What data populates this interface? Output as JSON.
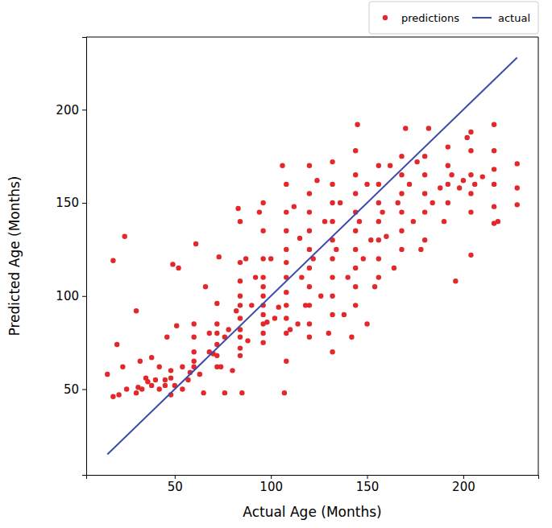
{
  "chart_data": {
    "type": "scatter",
    "x_label": "Actual Age (Months)",
    "y_label": "Predicted Age (Months)",
    "xlim": [
      4,
      239
    ],
    "ylim": [
      4,
      239
    ],
    "xticks": [
      50,
      100,
      150,
      200
    ],
    "yticks": [
      50,
      100,
      150,
      200
    ],
    "grid": false,
    "legend": "upper right",
    "series": [
      {
        "name": "predictions",
        "type": "scatter",
        "marker": "circle",
        "color": "#e3282c",
        "x": [
          15,
          18,
          18,
          20,
          21,
          23,
          24,
          25,
          30,
          30,
          31,
          32,
          33,
          35,
          36,
          38,
          38,
          40,
          42,
          42,
          45,
          45,
          46,
          48,
          48,
          48,
          49,
          50,
          51,
          52,
          54,
          54,
          57,
          58,
          60,
          60,
          60,
          60,
          60,
          61,
          63,
          65,
          66,
          68,
          68,
          70,
          72,
          72,
          72,
          72,
          72,
          72,
          73,
          74,
          76,
          76,
          78,
          80,
          82,
          83,
          84,
          84,
          84,
          84,
          84,
          84,
          84,
          84,
          84,
          84,
          85,
          87,
          88,
          90,
          92,
          94,
          96,
          96,
          96,
          96,
          96,
          96,
          96,
          96,
          96,
          96,
          96,
          98,
          100,
          102,
          104,
          106,
          107,
          108,
          108,
          108,
          108,
          108,
          108,
          108,
          108,
          108,
          108,
          108,
          110,
          112,
          114,
          115,
          116,
          118,
          120,
          120,
          120,
          120,
          120,
          120,
          120,
          120,
          120,
          120,
          122,
          124,
          126,
          128,
          130,
          132,
          132,
          132,
          132,
          132,
          132,
          132,
          132,
          132,
          132,
          134,
          136,
          138,
          140,
          142,
          144,
          144,
          144,
          144,
          144,
          144,
          144,
          144,
          144,
          145,
          146,
          148,
          150,
          150,
          152,
          154,
          156,
          156,
          156,
          156,
          156,
          156,
          156,
          158,
          160,
          162,
          164,
          166,
          168,
          168,
          168,
          168,
          168,
          168,
          170,
          172,
          174,
          176,
          178,
          180,
          180,
          180,
          180,
          180,
          182,
          184,
          188,
          190,
          192,
          192,
          192,
          192,
          194,
          196,
          198,
          200,
          202,
          204,
          204,
          204,
          204,
          204,
          204,
          206,
          210,
          216,
          216,
          216,
          216,
          216,
          216,
          218,
          228,
          228,
          228
        ],
        "values": [
          58,
          46,
          119,
          74,
          47,
          62,
          132,
          50,
          92,
          48,
          51,
          65,
          50,
          56,
          54,
          67,
          52,
          55,
          50,
          62,
          52,
          55,
          78,
          47,
          56,
          60,
          117,
          52,
          84,
          115,
          50,
          62,
          55,
          59,
          62,
          65,
          70,
          78,
          85,
          128,
          58,
          48,
          105,
          70,
          80,
          69,
          62,
          68,
          74,
          80,
          85,
          96,
          121,
          62,
          78,
          48,
          82,
          60,
          92,
          147,
          68,
          72,
          78,
          82,
          88,
          95,
          100,
          108,
          118,
          140,
          48,
          120,
          76,
          95,
          110,
          145,
          75,
          80,
          85,
          90,
          95,
          100,
          105,
          110,
          120,
          135,
          150,
          86,
          120,
          88,
          94,
          170,
          48,
          65,
          80,
          88,
          95,
          102,
          110,
          118,
          125,
          135,
          145,
          160,
          82,
          148,
          85,
          131,
          110,
          95,
          78,
          85,
          95,
          105,
          115,
          125,
          135,
          145,
          155,
          170,
          120,
          162,
          100,
          140,
          80,
          70,
          90,
          100,
          110,
          120,
          130,
          140,
          150,
          160,
          172,
          125,
          150,
          90,
          110,
          78,
          95,
          105,
          115,
          125,
          135,
          145,
          155,
          165,
          178,
          192,
          140,
          120,
          85,
          160,
          130,
          105,
          110,
          120,
          130,
          140,
          150,
          160,
          170,
          145,
          132,
          170,
          115,
          150,
          125,
          135,
          145,
          155,
          165,
          175,
          190,
          160,
          140,
          172,
          125,
          130,
          145,
          155,
          165,
          175,
          190,
          150,
          158,
          140,
          150,
          160,
          170,
          180,
          165,
          108,
          158,
          162,
          185,
          122,
          145,
          155,
          165,
          178,
          188,
          160,
          164,
          139,
          148,
          160,
          168,
          178,
          192,
          140,
          149,
          158,
          171
        ]
      },
      {
        "name": "actual",
        "type": "line",
        "line_style": "solid",
        "color": "#3b4ba8",
        "x": [
          15,
          228
        ],
        "values": [
          15,
          228
        ]
      }
    ]
  }
}
